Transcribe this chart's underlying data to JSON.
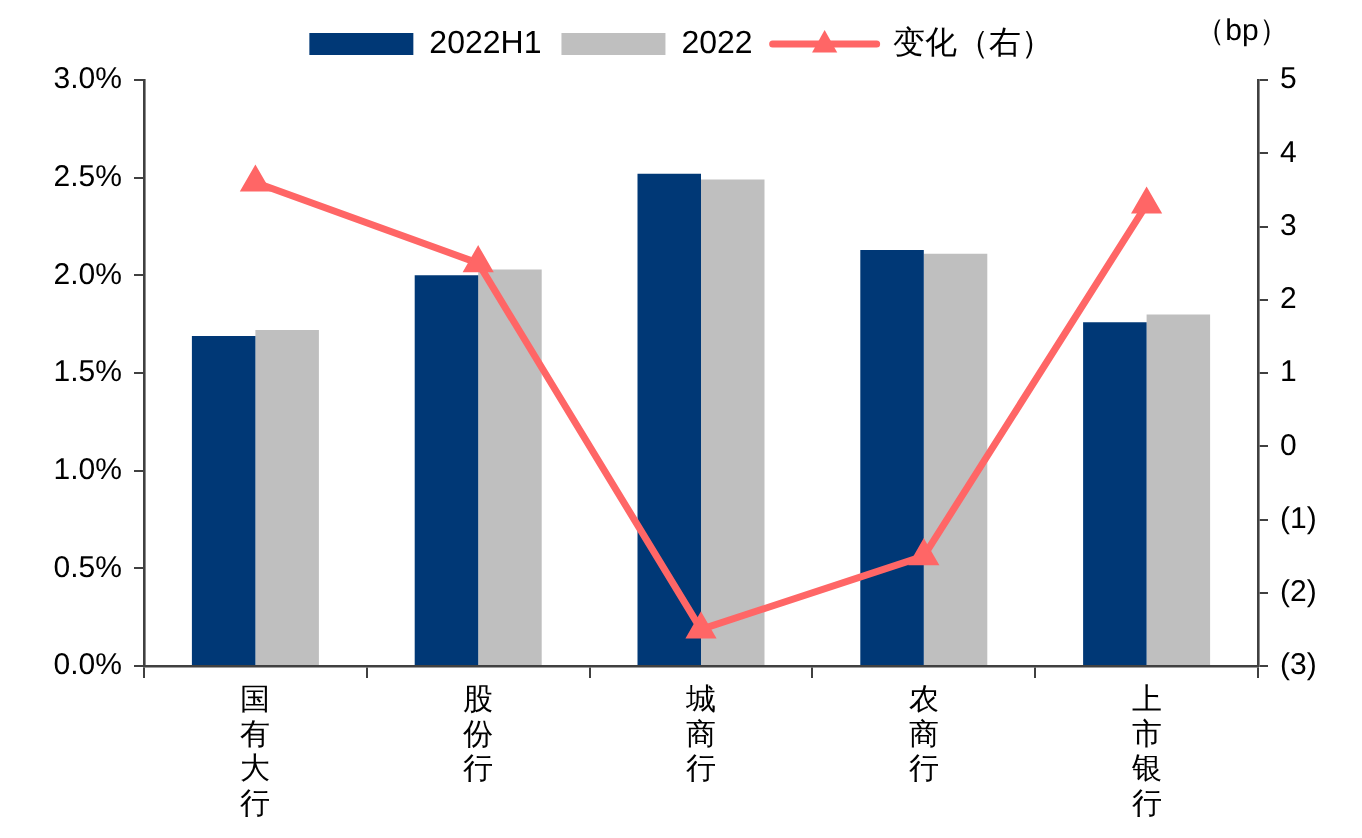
{
  "chart_data": {
    "type": "bar",
    "categories": [
      "国有大行",
      "股份行",
      "城商行",
      "农商行",
      "上市银行"
    ],
    "series": [
      {
        "name": "2022H1",
        "color": "#003876",
        "values": [
          1.69,
          2.0,
          2.52,
          2.13,
          1.76
        ]
      },
      {
        "name": "2022",
        "color": "#bfbfbf",
        "values": [
          1.72,
          2.03,
          2.49,
          2.11,
          1.8
        ]
      },
      {
        "name": "变化（右）",
        "type": "line",
        "axis": "y2",
        "color": "#ff6666",
        "values": [
          3.6,
          2.5,
          -2.5,
          -1.5,
          3.3
        ]
      }
    ],
    "ylim": [
      0,
      3
    ],
    "yticks": [
      {
        "value": 0,
        "label": "0.0%"
      },
      {
        "value": 0.5,
        "label": "0.5%"
      },
      {
        "value": 1,
        "label": "1.0%"
      },
      {
        "value": 1.5,
        "label": "1.5%"
      },
      {
        "value": 2,
        "label": "2.0%"
      },
      {
        "value": 2.5,
        "label": "2.5%"
      },
      {
        "value": 3,
        "label": "3.0%"
      }
    ],
    "y2label": "（bp）",
    "y2lim": [
      -3,
      5
    ],
    "y2ticks": [
      {
        "value": -3,
        "label": "(3)"
      },
      {
        "value": -2,
        "label": "(2)"
      },
      {
        "value": -1,
        "label": "(1)"
      },
      0,
      1,
      2,
      3,
      4,
      5
    ],
    "legend": "top",
    "grid": false,
    "marker": "triangle",
    "line_style": "solid"
  }
}
